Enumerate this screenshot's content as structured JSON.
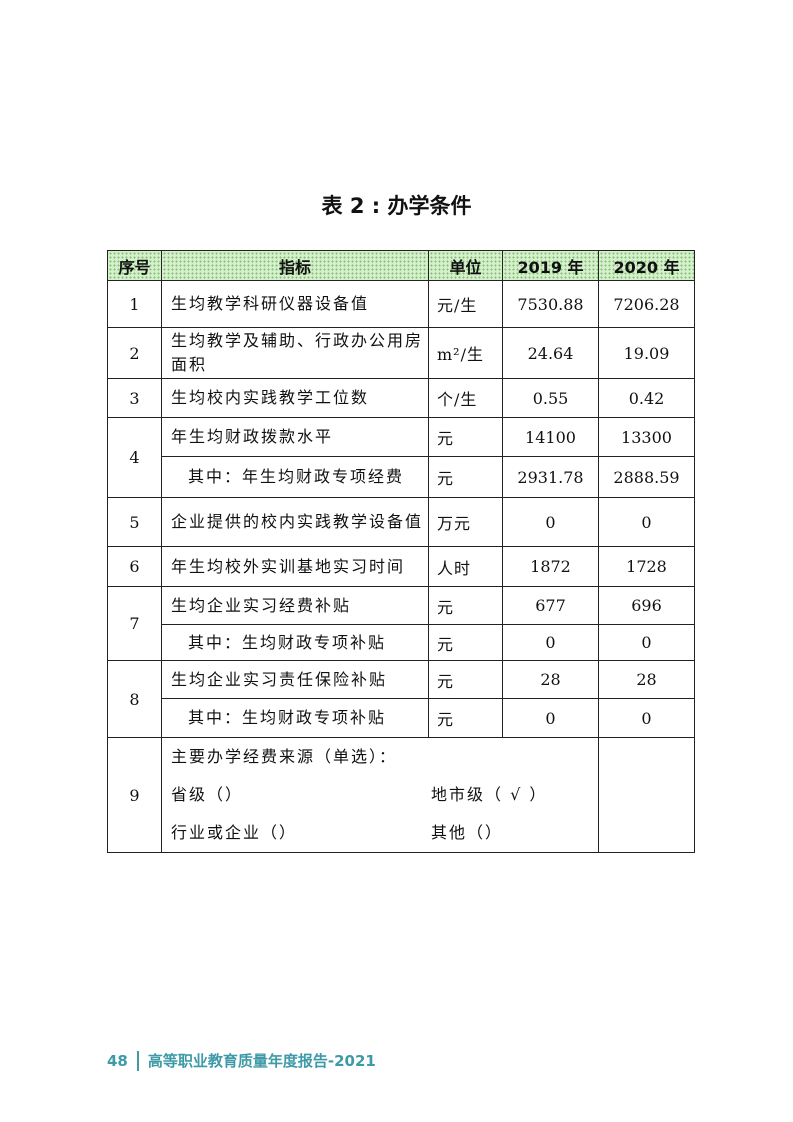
{
  "title": "表 2 : 办学条件",
  "headers": [
    "序号",
    "指标",
    "单位",
    "2019 年",
    "2020 年"
  ],
  "groups": [
    {
      "seq": "1",
      "items": [
        {
          "indicator": "生均教学科研仪器设备值",
          "unit": "元/生",
          "y2019": "7530.88",
          "y2020": "7206.28"
        }
      ]
    },
    {
      "seq": "2",
      "items": [
        {
          "indicator": "生均教学及辅助、行政办公用房面积",
          "unit": "m²/生",
          "y2019": "24.64",
          "y2020": "19.09"
        }
      ]
    },
    {
      "seq": "3",
      "items": [
        {
          "indicator": "生均校内实践教学工位数",
          "unit": "个/生",
          "y2019": "0.55",
          "y2020": "0.42"
        }
      ]
    },
    {
      "seq": "4",
      "items": [
        {
          "indicator": "年生均财政拨款水平",
          "unit": "元",
          "y2019": "14100",
          "y2020": "13300"
        },
        {
          "indicator": "其中：年生均财政专项经费",
          "unit": "元",
          "y2019": "2931.78",
          "y2020": "2888.59",
          "sub": true
        }
      ]
    },
    {
      "seq": "5",
      "items": [
        {
          "indicator": "企业提供的校内实践教学设备值",
          "unit": "万元",
          "y2019": "0",
          "y2020": "0"
        }
      ]
    },
    {
      "seq": "6",
      "items": [
        {
          "indicator": "年生均校外实训基地实习时间",
          "unit": "人时",
          "y2019": "1872",
          "y2020": "1728"
        }
      ]
    },
    {
      "seq": "7",
      "items": [
        {
          "indicator": "生均企业实习经费补贴",
          "unit": "元",
          "y2019": "677",
          "y2020": "696"
        },
        {
          "indicator": "其中：生均财政专项补贴",
          "unit": "元",
          "y2019": "0",
          "y2020": "0",
          "sub": true
        }
      ]
    },
    {
      "seq": "8",
      "items": [
        {
          "indicator": "生均企业实习责任保险补贴",
          "unit": "元",
          "y2019": "28",
          "y2020": "28"
        },
        {
          "indicator": "其中：生均财政专项补贴",
          "unit": "元",
          "y2019": "0",
          "y2020": "0",
          "sub": true
        }
      ]
    }
  ],
  "funding": {
    "seq": "9",
    "heading": "主要办学经费来源（单选）：",
    "options": [
      "省级（）",
      "地市级（ √ ）",
      "行业或企业（）",
      "其他（）"
    ]
  },
  "footer": {
    "page": "48",
    "text": "高等职业教育质量年度报告-2021",
    "color": "#3f9aa8"
  }
}
